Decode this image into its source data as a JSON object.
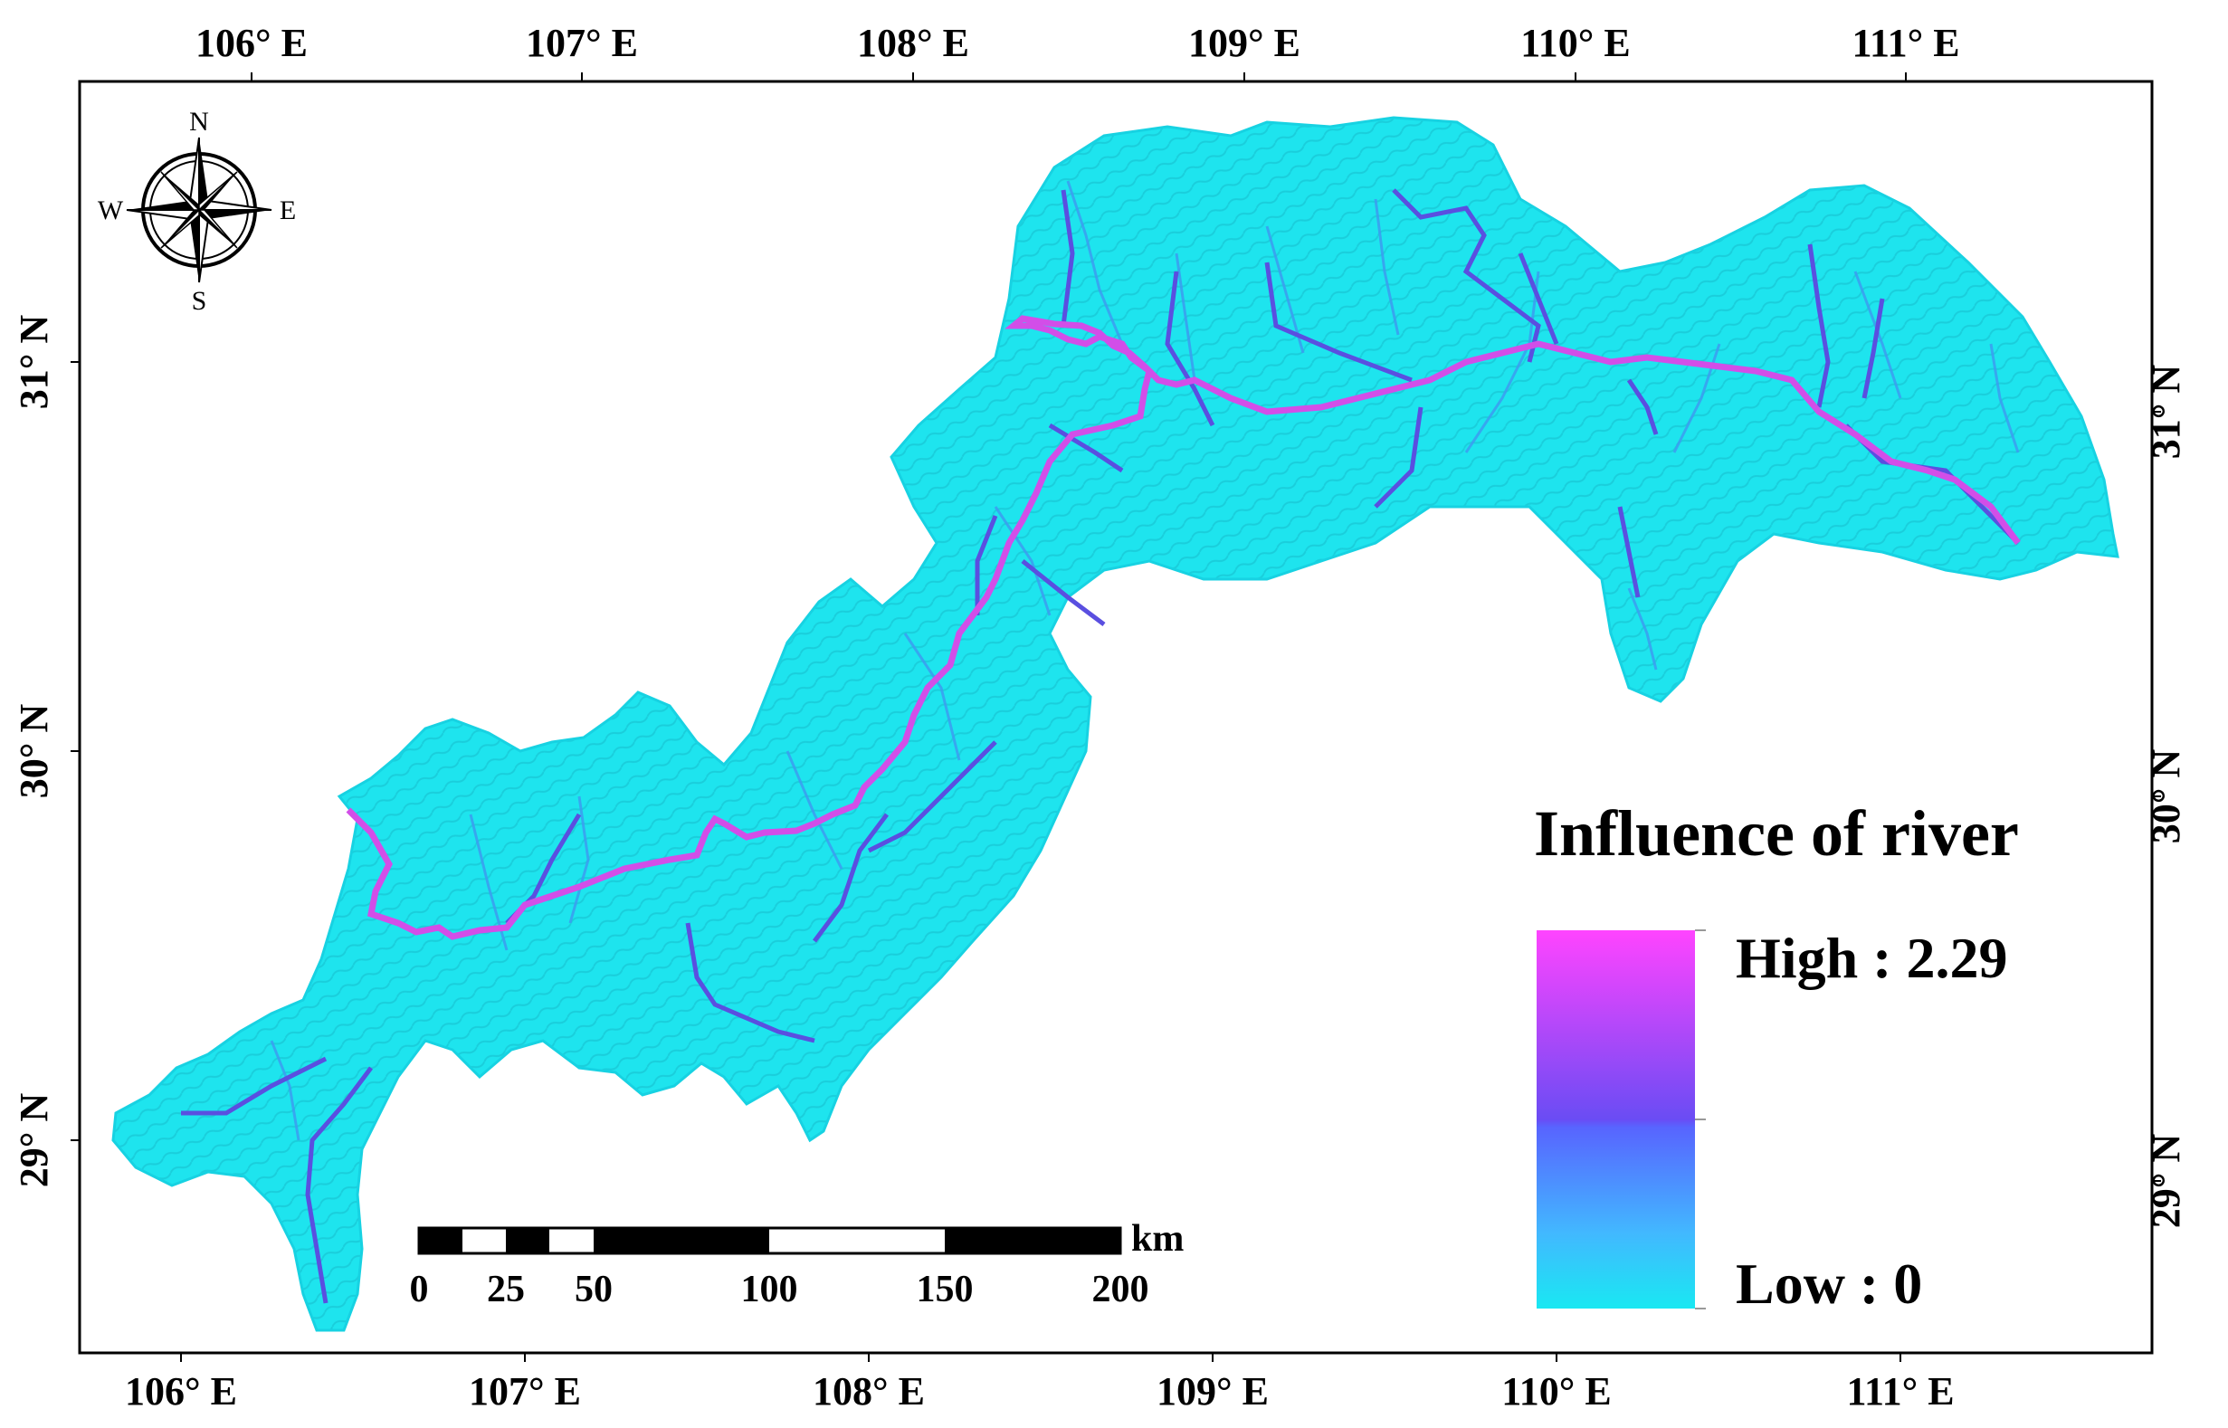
{
  "axes": {
    "longitude_labels": [
      "106° E",
      "107° E",
      "108° E",
      "109° E",
      "110° E",
      "111° E"
    ],
    "latitude_labels_left": [
      "31° N",
      "30° N",
      "29° N"
    ],
    "latitude_labels_right": [
      "31° N",
      "30° N",
      "29° N"
    ]
  },
  "compass": {
    "n": "N",
    "s": "S",
    "e": "E",
    "w": "W"
  },
  "scale_bar": {
    "unit": "km",
    "labels": [
      "0",
      "25",
      "50",
      "100",
      "150",
      "200"
    ]
  },
  "legend": {
    "title": "Influence of river",
    "high_label": "High : 2.29",
    "low_label": "Low : 0",
    "colors": {
      "high": "#ff44ff",
      "mid_high": "#9a4cff",
      "mid": "#5e5cff",
      "mid_low": "#4aa8ff",
      "low": "#19e8f2"
    }
  },
  "map_colors": {
    "land": "#1ee4ee",
    "land_shade": "#17c2d2",
    "river_main": "#d24ee8",
    "river_secondary": "#5a4fe0",
    "river_minor": "#3aa0f0"
  }
}
